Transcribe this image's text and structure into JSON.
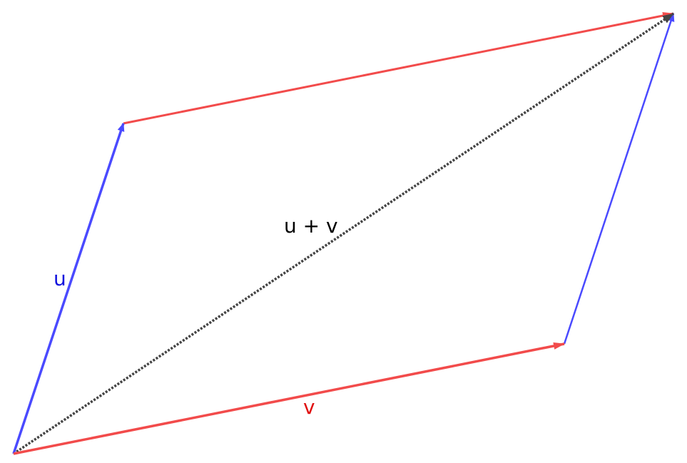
{
  "diagram": {
    "colors": {
      "u": "#4a4aff",
      "v": "#f24b4b",
      "sum": "#444444",
      "u_label": "#1010dd",
      "v_label": "#e01010",
      "sum_label": "#000000"
    },
    "labels": {
      "u": "u",
      "v": "v",
      "sum": "u + v"
    }
  }
}
